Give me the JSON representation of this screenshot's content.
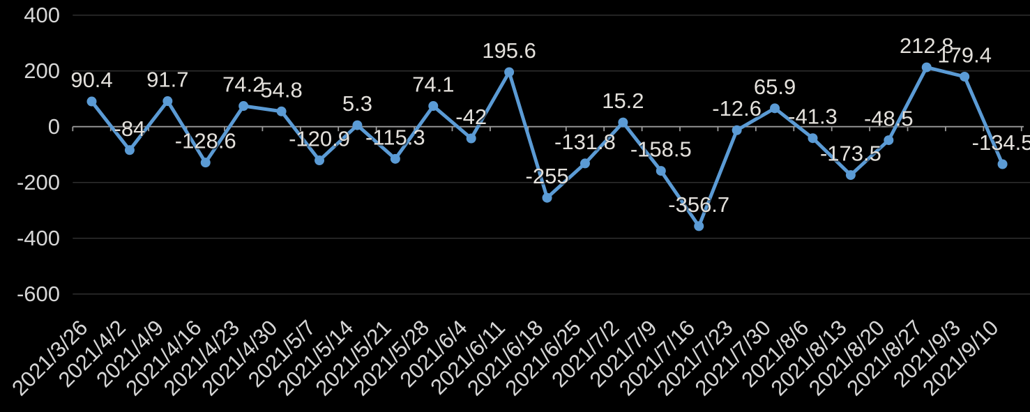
{
  "chart_data": {
    "type": "line",
    "title": "",
    "xlabel": "",
    "ylabel": "",
    "categories": [
      "2021/3/26",
      "2021/4/2",
      "2021/4/9",
      "2021/4/16",
      "2021/4/23",
      "2021/4/30",
      "2021/5/7",
      "2021/5/14",
      "2021/5/21",
      "2021/5/28",
      "2021/6/4",
      "2021/6/11",
      "2021/6/18",
      "2021/6/25",
      "2021/7/2",
      "2021/7/9",
      "2021/7/16",
      "2021/7/23",
      "2021/7/30",
      "2021/8/6",
      "2021/8/13",
      "2021/8/20",
      "2021/8/27",
      "2021/9/3",
      "2021/9/10"
    ],
    "values": [
      90.4,
      -84,
      91.7,
      -128.6,
      74.2,
      54.8,
      -120.9,
      5.3,
      -115.3,
      74.1,
      -42,
      195.6,
      -255,
      -131.8,
      15.2,
      -158.5,
      -356.7,
      -12.6,
      65.9,
      -41.3,
      -173.5,
      -48.5,
      212.8,
      179.4,
      -134.5
    ],
    "data_labels_visible": true,
    "yticks": [
      400,
      200,
      0,
      -200,
      -400,
      -600
    ],
    "ylim": [
      -600,
      400
    ],
    "grid": true,
    "legend_position": "none",
    "x_label_rotation_deg": 45,
    "colors": {
      "background": "#000000",
      "series_line": "#5B9BD5",
      "marker_fill": "#5B9BD5",
      "data_label_text": "#E4E1DC",
      "axis_tick_text": "#D6D6D6",
      "gridline": "#2F2F2F",
      "axis_line": "#9B9B9B"
    }
  }
}
